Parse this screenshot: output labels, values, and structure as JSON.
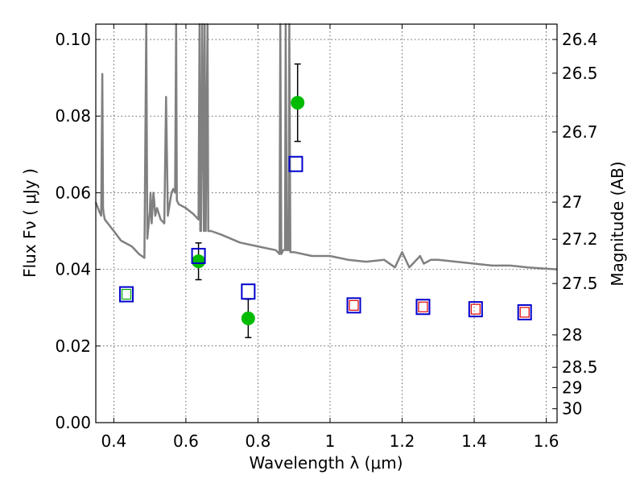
{
  "chart_data": {
    "type": "scatter",
    "xlabel": "Wavelength  λ (μm)",
    "ylabel": "Flux  Fν  ( μJy )",
    "y2label": "Magnitude (AB)",
    "xlim": [
      0.35,
      1.63
    ],
    "ylim": [
      0.0,
      0.104
    ],
    "grid": true,
    "x_ticks": [
      0.4,
      0.6,
      0.8,
      1.0,
      1.2,
      1.4,
      1.6
    ],
    "x_tick_labels": [
      "0.4",
      "0.6",
      "0.8",
      "1",
      "1.2",
      "1.4",
      "1.6"
    ],
    "y_ticks": [
      0.0,
      0.02,
      0.04,
      0.06,
      0.08,
      0.1
    ],
    "y_tick_labels": [
      "0.00",
      "0.02",
      "0.04",
      "0.06",
      "0.08",
      "0.10"
    ],
    "mag_ticks": [
      26.4,
      26.5,
      26.7,
      27,
      27.2,
      27.5,
      28,
      28.5,
      29,
      30
    ],
    "mag_tick_labels": [
      "26.4",
      "26.5",
      "26.7",
      "27",
      "27.2",
      "27.5",
      "28",
      "28.5",
      "29",
      "30"
    ],
    "model_spectrum": {
      "color": "#808080",
      "x": [
        0.35,
        0.36,
        0.365,
        0.368,
        0.37,
        0.372,
        0.375,
        0.4,
        0.42,
        0.45,
        0.47,
        0.485,
        0.49,
        0.493,
        0.5,
        0.502,
        0.505,
        0.51,
        0.512,
        0.515,
        0.52,
        0.53,
        0.54,
        0.545,
        0.55,
        0.56,
        0.565,
        0.57,
        0.573,
        0.575,
        0.58,
        0.6,
        0.62,
        0.635,
        0.638,
        0.64,
        0.642,
        0.645,
        0.65,
        0.652,
        0.655,
        0.66,
        0.662,
        0.665,
        0.67,
        0.7,
        0.75,
        0.8,
        0.85,
        0.86,
        0.862,
        0.865,
        0.87,
        0.875,
        0.877,
        0.88,
        0.885,
        0.887,
        0.89,
        0.9,
        0.95,
        1.0,
        1.05,
        1.1,
        1.15,
        1.18,
        1.2,
        1.22,
        1.25,
        1.26,
        1.28,
        1.3,
        1.4,
        1.45,
        1.5,
        1.55,
        1.6,
        1.63
      ],
      "y": [
        0.0575,
        0.055,
        0.054,
        0.091,
        0.056,
        0.0545,
        0.053,
        0.05,
        0.0475,
        0.046,
        0.044,
        0.043,
        0.104,
        0.048,
        0.055,
        0.06,
        0.052,
        0.06,
        0.058,
        0.054,
        0.056,
        0.053,
        0.052,
        0.085,
        0.054,
        0.06,
        0.061,
        0.06,
        0.104,
        0.058,
        0.057,
        0.056,
        0.0545,
        0.053,
        0.104,
        0.05,
        0.05,
        0.104,
        0.05,
        0.104,
        0.05,
        0.104,
        0.05,
        0.05,
        0.05,
        0.049,
        0.047,
        0.046,
        0.045,
        0.044,
        0.104,
        0.044,
        0.045,
        0.045,
        0.104,
        0.045,
        0.045,
        0.104,
        0.0445,
        0.0445,
        0.0435,
        0.0435,
        0.0425,
        0.042,
        0.0425,
        0.0405,
        0.0445,
        0.0405,
        0.0435,
        0.0415,
        0.0425,
        0.0425,
        0.0415,
        0.041,
        0.041,
        0.0405,
        0.0402,
        0.04
      ]
    },
    "series": [
      {
        "marker": "filled-circle",
        "color": "#00bb00",
        "x": [
          0.635,
          0.773,
          0.91
        ],
        "y": [
          0.0421,
          0.0272,
          0.0835
        ],
        "yerr": [
          0.0048,
          0.005,
          0.0101
        ]
      },
      {
        "marker": "open-square",
        "color": "#0000cc",
        "x": [
          0.435,
          0.635,
          0.773,
          0.905,
          1.066,
          1.258,
          1.404,
          1.54
        ],
        "y": [
          0.0335,
          0.0435,
          0.0342,
          0.0675,
          0.0306,
          0.0302,
          0.0296,
          0.0288
        ]
      },
      {
        "marker": "small-open-square",
        "color": "#dd0000",
        "x": [
          1.066,
          1.258,
          1.404,
          1.54
        ],
        "y": [
          0.0306,
          0.0302,
          0.0296,
          0.0288
        ]
      },
      {
        "marker": "small-open-square",
        "color": "#00aa00",
        "x": [
          0.435
        ],
        "y": [
          0.0335
        ]
      }
    ]
  }
}
